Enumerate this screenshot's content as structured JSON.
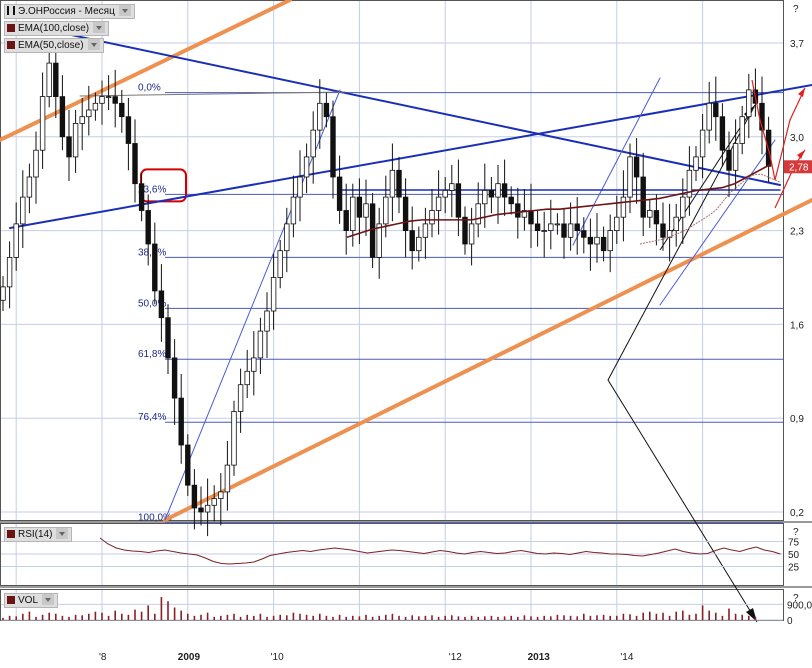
{
  "legend": {
    "main_title": "Э.ОНРоссия - Месяц",
    "ema100": "EMA(100,close)",
    "ema50": "EMA(50,close)",
    "rsi": "RSI(14)",
    "vol": "VOL"
  },
  "corner_marks": [
    "?",
    "?",
    "?"
  ],
  "chart_data": [
    {
      "type": "candlestick",
      "name": "price",
      "y_ticks": [
        "3,7",
        "3,0",
        "2,3",
        "1,6",
        "0,9",
        "0,2"
      ],
      "ylim": [
        0.2,
        3.75
      ],
      "x_ticks": [
        "'8",
        "2009",
        "'10",
        "'12",
        "2013",
        "'14"
      ],
      "x_tick_idx": [
        15,
        28,
        41,
        68,
        81,
        94
      ],
      "last_price_label": "2,78",
      "last_price": 2.78,
      "fib_levels": [
        {
          "label": "0,0%",
          "value": 3.33
        },
        {
          "label": "23,6%",
          "value": 2.57
        },
        {
          "label": "38,2%",
          "value": 2.1
        },
        {
          "label": "50,0%",
          "value": 1.72
        },
        {
          "label": "61,8%",
          "value": 1.34
        },
        {
          "label": "76,4%",
          "value": 0.87
        },
        {
          "label": "100,0%",
          "value": 0.12
        }
      ],
      "highlighted_level": "23,6%",
      "closes": [
        1.88,
        2.1,
        2.35,
        2.55,
        2.7,
        2.9,
        3.3,
        3.55,
        3.3,
        3.0,
        2.85,
        3.1,
        3.15,
        3.2,
        3.25,
        3.3,
        3.3,
        3.25,
        3.15,
        2.95,
        2.65,
        2.45,
        2.2,
        1.85,
        1.65,
        1.35,
        1.05,
        0.7,
        0.4,
        0.23,
        0.2,
        0.25,
        0.3,
        0.35,
        0.55,
        0.95,
        1.15,
        1.25,
        1.35,
        1.55,
        1.7,
        1.95,
        2.15,
        2.35,
        2.55,
        2.7,
        2.85,
        3.05,
        3.25,
        3.15,
        2.7,
        2.45,
        2.3,
        2.55,
        2.4,
        2.5,
        2.1,
        2.35,
        2.55,
        2.75,
        2.55,
        2.3,
        2.15,
        2.25,
        2.35,
        2.45,
        2.55,
        2.6,
        2.65,
        2.4,
        2.2,
        2.35,
        2.5,
        2.6,
        2.55,
        2.65,
        2.55,
        2.5,
        2.4,
        2.45,
        2.35,
        2.3,
        2.3,
        2.35,
        2.35,
        2.25,
        2.35,
        2.3,
        2.25,
        2.2,
        2.25,
        2.15,
        2.3,
        2.4,
        2.55,
        2.85,
        2.7,
        2.4,
        2.45,
        2.35,
        2.25,
        2.3,
        2.4,
        2.55,
        2.75,
        2.85,
        3.05,
        3.25,
        3.15,
        2.9,
        2.75,
        2.95,
        3.15,
        3.35,
        3.25,
        3.05,
        2.78
      ],
      "ema100": [
        2.25,
        2.28,
        2.31,
        2.33,
        2.35,
        2.37,
        2.38,
        2.38,
        2.38,
        2.38,
        2.38,
        2.4,
        2.42,
        2.43,
        2.44,
        2.45,
        2.46,
        2.46,
        2.47,
        2.48,
        2.49,
        2.5,
        2.51,
        2.52,
        2.53,
        2.54,
        2.56,
        2.58,
        2.6,
        2.61,
        2.62,
        2.65,
        2.7,
        2.75,
        2.8
      ],
      "ema100_start_idx": 83,
      "ema50_start_idx": 95,
      "ema50": [
        2.2,
        2.21,
        2.22,
        2.23,
        2.24,
        2.26,
        2.28,
        2.3,
        2.33,
        2.36,
        2.39,
        2.42,
        2.46,
        2.52,
        2.58,
        2.62,
        2.66,
        2.7,
        2.72,
        2.72,
        2.7,
        2.68,
        2.66
      ],
      "volumes": [
        20,
        40,
        35,
        60,
        80,
        30,
        50,
        70,
        60,
        40,
        30,
        50,
        45,
        60,
        80,
        70,
        40,
        90,
        60,
        50,
        100,
        80,
        140,
        60,
        220,
        180,
        120,
        90,
        60,
        40,
        50,
        70,
        30,
        40,
        50,
        60,
        30,
        50,
        40,
        60,
        30,
        40,
        50,
        45,
        70,
        60,
        50,
        40,
        60,
        40,
        30,
        50,
        30,
        40,
        35,
        50,
        30,
        40,
        50,
        60,
        40,
        30,
        45,
        35,
        40,
        45,
        30,
        40,
        45,
        35,
        30,
        40,
        30,
        35,
        40,
        30,
        35,
        40,
        30,
        45,
        35,
        30,
        40,
        35,
        50,
        45,
        40,
        35,
        60,
        40,
        45,
        50,
        40,
        40,
        60,
        55,
        40,
        70,
        80,
        60,
        70,
        40,
        80,
        90,
        50,
        60,
        140,
        90,
        70,
        40,
        110,
        60,
        50,
        40,
        30
      ],
      "vol_ticks": [
        "900,0",
        "0"
      ],
      "rsi_ticks": [
        "75",
        "50",
        "25"
      ],
      "rsi_values": [
        82,
        70,
        62,
        58,
        56,
        55,
        53,
        56,
        58,
        55,
        52,
        50,
        48,
        42,
        35,
        31,
        30,
        31,
        32,
        34,
        40,
        47,
        50,
        53,
        55,
        57,
        55,
        58,
        60,
        62,
        60,
        58,
        55,
        52,
        54,
        56,
        58,
        57,
        55,
        53,
        51,
        54,
        57,
        55,
        52,
        50,
        53,
        55,
        53,
        51,
        52,
        55,
        57,
        54,
        51,
        50,
        52,
        51,
        49,
        52,
        55,
        53,
        52,
        50,
        50,
        49,
        47,
        46,
        49,
        52,
        56,
        60,
        55,
        52,
        50,
        51,
        57,
        62,
        58,
        55,
        60,
        64,
        58,
        55,
        50
      ]
    }
  ]
}
